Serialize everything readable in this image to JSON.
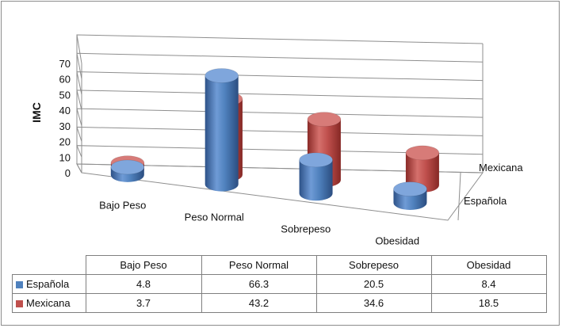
{
  "chart_data": {
    "type": "bar",
    "bar_shape": "cylinder-3d",
    "ylabel": "IMC",
    "ylim": [
      0,
      70
    ],
    "yticks": [
      0,
      10,
      20,
      30,
      40,
      50,
      60,
      70
    ],
    "grid": true,
    "categories": [
      "Bajo Peso",
      "Peso Normal",
      "Sobrepeso",
      "Obesidad"
    ],
    "series": [
      {
        "name": "Española",
        "values": [
          4.8,
          66.3,
          20.5,
          8.4
        ],
        "color": "#4f81bd"
      },
      {
        "name": "Mexicana",
        "values": [
          3.7,
          43.2,
          34.6,
          18.5
        ],
        "color": "#c0504d"
      }
    ],
    "data_table": true
  }
}
